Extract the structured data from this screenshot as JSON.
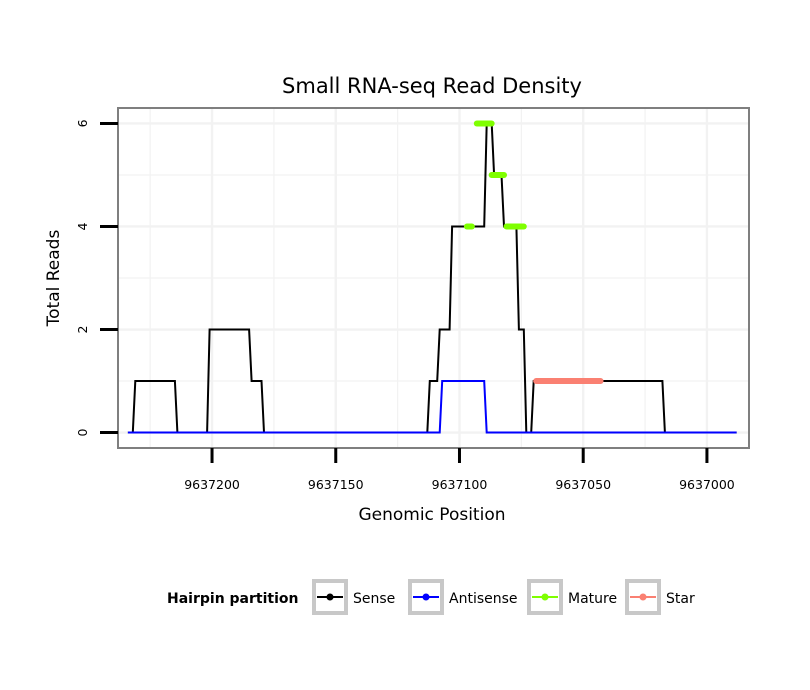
{
  "chart_data": {
    "type": "line",
    "title": "Small RNA-seq Read Density",
    "xlabel": "Genomic Position",
    "ylabel": "Total Reads",
    "xlim": [
      9637238,
      9636983
    ],
    "x_reversed": true,
    "ylim": [
      -0.3,
      6.3
    ],
    "x_ticks": [
      9637200,
      9637150,
      9637100,
      9637050,
      9637000
    ],
    "x_tick_labels": [
      "9637200",
      "9637150",
      "9637100",
      "9637050",
      "9637000"
    ],
    "y_ticks": [
      0,
      2,
      4,
      6
    ],
    "y_tick_labels": [
      "0",
      "2",
      "4",
      "6"
    ],
    "grid": true,
    "legend": {
      "title": "Hairpin partition",
      "placement": "bottom",
      "entries": [
        "Sense",
        "Antisense",
        "Mature",
        "Star"
      ]
    },
    "series": [
      {
        "name": "Sense",
        "color": "#000000",
        "kind": "line",
        "x": [
          9637234,
          9637232,
          9637231,
          9637215,
          9637214,
          9637202,
          9637201,
          9637185,
          9637184,
          9637183,
          9637182,
          9637180,
          9637179,
          9637113,
          9637112,
          9637109,
          9637108,
          9637104,
          9637103,
          9637090,
          9637089,
          9637087,
          9637086,
          9637083,
          9637082,
          9637077,
          9637076,
          9637074,
          9637073,
          9637071,
          9637070,
          9637068,
          9637067,
          9637064,
          9637063,
          9637059,
          9637058,
          9637018,
          9637017,
          9636988
        ],
        "y": [
          0,
          0,
          1,
          1,
          0,
          0,
          2,
          2,
          1,
          1,
          1,
          1,
          0,
          0,
          1,
          1,
          2,
          2,
          4,
          4,
          6,
          6,
          5,
          5,
          4,
          4,
          2,
          2,
          0,
          0,
          1,
          1,
          1,
          1,
          1,
          1,
          1,
          1,
          0,
          0
        ]
      },
      {
        "name": "Antisense",
        "color": "#0000ff",
        "kind": "line",
        "x": [
          9637234,
          9637108,
          9637107,
          9637090,
          9637089,
          9636988
        ],
        "y": [
          0,
          0,
          1,
          1,
          0,
          0
        ]
      },
      {
        "name": "Mature",
        "color": "#7fff00",
        "kind": "segments",
        "segments": [
          {
            "x": [
              9637097,
              9637095
            ],
            "y": 4
          },
          {
            "x": [
              9637093,
              9637087
            ],
            "y": 6
          },
          {
            "x": [
              9637087,
              9637082
            ],
            "y": 5
          },
          {
            "x": [
              9637081,
              9637074
            ],
            "y": 4
          }
        ]
      },
      {
        "name": "Star",
        "color": "#fa8072",
        "kind": "segments",
        "segments": [
          {
            "x": [
              9637069,
              9637043
            ],
            "y": 1
          }
        ]
      }
    ]
  }
}
